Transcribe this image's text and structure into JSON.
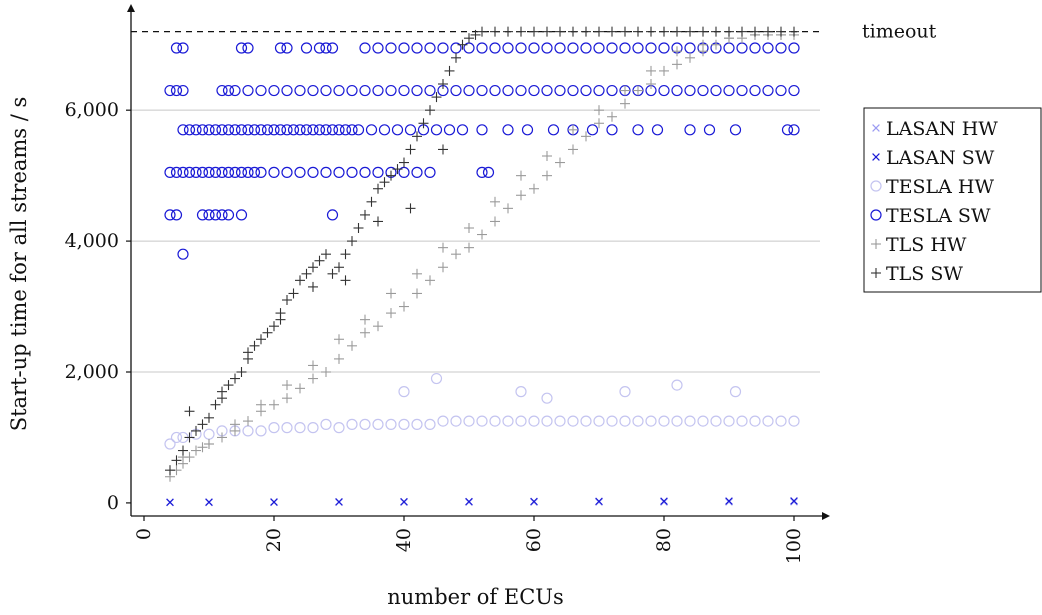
{
  "chart_data": {
    "type": "scatter",
    "xlabel": "number of ECUs",
    "ylabel": "Start-up time for all streams / s",
    "xlim": [
      0,
      100
    ],
    "ylim": [
      -200,
      7500
    ],
    "x_ticks": [
      0,
      20,
      40,
      60,
      80,
      100
    ],
    "y_ticks": [
      0,
      2000,
      4000,
      6000
    ],
    "x_tick_labels": [
      "0",
      "20",
      "40",
      "60",
      "80",
      "100"
    ],
    "y_tick_labels": [
      "0",
      "2,000",
      "4,000",
      "6,000"
    ],
    "grid": "horizontal",
    "legend_position": "right",
    "timeout": {
      "label": "timeout",
      "value": 7200
    },
    "series": [
      {
        "name": "LASAN HW",
        "marker": "x",
        "color": "#9a9af2",
        "x": [
          4,
          10,
          20,
          30,
          40,
          50,
          60,
          70,
          80,
          90,
          100
        ],
        "y": [
          5,
          6,
          8,
          9,
          10,
          11,
          12,
          13,
          14,
          15,
          16
        ]
      },
      {
        "name": "LASAN SW",
        "marker": "x",
        "color": "#1a1ad6",
        "x": [
          4,
          10,
          20,
          30,
          40,
          50,
          60,
          70,
          80,
          90,
          100
        ],
        "y": [
          10,
          12,
          14,
          16,
          18,
          20,
          22,
          24,
          26,
          28,
          30
        ]
      },
      {
        "name": "TESLA HW",
        "marker": "o",
        "color": "#c4c4f0",
        "x": [
          4,
          5,
          6,
          8,
          10,
          12,
          14,
          16,
          18,
          20,
          22,
          24,
          26,
          28,
          30,
          32,
          34,
          36,
          38,
          40,
          42,
          44,
          46,
          48,
          50,
          52,
          54,
          56,
          58,
          60,
          62,
          64,
          66,
          68,
          70,
          72,
          74,
          76,
          78,
          80,
          82,
          84,
          86,
          88,
          90,
          92,
          94,
          96,
          98,
          100,
          40,
          45,
          58,
          62,
          74,
          82,
          91
        ],
        "y": [
          900,
          1000,
          1000,
          1050,
          1050,
          1100,
          1100,
          1100,
          1100,
          1150,
          1150,
          1150,
          1150,
          1200,
          1150,
          1200,
          1200,
          1200,
          1200,
          1200,
          1200,
          1200,
          1250,
          1250,
          1250,
          1250,
          1250,
          1250,
          1250,
          1250,
          1250,
          1250,
          1250,
          1250,
          1250,
          1250,
          1250,
          1250,
          1250,
          1250,
          1250,
          1250,
          1250,
          1250,
          1250,
          1250,
          1250,
          1250,
          1250,
          1250,
          1700,
          1900,
          1700,
          1600,
          1700,
          1800,
          1700
        ]
      },
      {
        "name": "TESLA SW",
        "marker": "o",
        "color": "#1a1ad6",
        "x": [
          5,
          15,
          16,
          21,
          22,
          25,
          27,
          28,
          29,
          6,
          34,
          36,
          38,
          40,
          42,
          44,
          46,
          48,
          50,
          52,
          54,
          56,
          58,
          60,
          62,
          64,
          66,
          68,
          70,
          72,
          74,
          76,
          78,
          80,
          82,
          84,
          86,
          88,
          90,
          92,
          94,
          96,
          98,
          100,
          4,
          5,
          6,
          12,
          13,
          14,
          16,
          18,
          20,
          22,
          24,
          26,
          28,
          30,
          32,
          34,
          36,
          38,
          40,
          42,
          44,
          46,
          48,
          50,
          52,
          54,
          56,
          58,
          60,
          62,
          64,
          66,
          68,
          70,
          72,
          74,
          76,
          78,
          80,
          82,
          84,
          86,
          88,
          90,
          92,
          94,
          96,
          98,
          100,
          6,
          7,
          8,
          9,
          10,
          11,
          12,
          13,
          14,
          15,
          16,
          17,
          18,
          19,
          20,
          21,
          22,
          23,
          24,
          25,
          26,
          27,
          28,
          29,
          30,
          31,
          32,
          33,
          35,
          37,
          39,
          41,
          43,
          45,
          47,
          49,
          52,
          56,
          59,
          63,
          66,
          69,
          72,
          76,
          79,
          84,
          87,
          91,
          99,
          100,
          4,
          5,
          6,
          7,
          8,
          9,
          10,
          11,
          12,
          13,
          14,
          15,
          16,
          17,
          18,
          20,
          22,
          24,
          26,
          28,
          30,
          32,
          34,
          36,
          38,
          40,
          42,
          44,
          52,
          53,
          4,
          5,
          9,
          10,
          11,
          12,
          13,
          15,
          29,
          6
        ],
        "y": [
          6950,
          6950,
          6950,
          6950,
          6950,
          6950,
          6950,
          6950,
          6950,
          6950,
          6950,
          6950,
          6950,
          6950,
          6950,
          6950,
          6950,
          6950,
          6950,
          6950,
          6950,
          6950,
          6950,
          6950,
          6950,
          6950,
          6950,
          6950,
          6950,
          6950,
          6950,
          6950,
          6950,
          6950,
          6950,
          6950,
          6950,
          6950,
          6950,
          6950,
          6950,
          6950,
          6950,
          6950,
          6300,
          6300,
          6300,
          6300,
          6300,
          6300,
          6300,
          6300,
          6300,
          6300,
          6300,
          6300,
          6300,
          6300,
          6300,
          6300,
          6300,
          6300,
          6300,
          6300,
          6300,
          6300,
          6300,
          6300,
          6300,
          6300,
          6300,
          6300,
          6300,
          6300,
          6300,
          6300,
          6300,
          6300,
          6300,
          6300,
          6300,
          6300,
          6300,
          6300,
          6300,
          6300,
          6300,
          6300,
          6300,
          6300,
          6300,
          6300,
          6300,
          5700,
          5700,
          5700,
          5700,
          5700,
          5700,
          5700,
          5700,
          5700,
          5700,
          5700,
          5700,
          5700,
          5700,
          5700,
          5700,
          5700,
          5700,
          5700,
          5700,
          5700,
          5700,
          5700,
          5700,
          5700,
          5700,
          5700,
          5700,
          5700,
          5700,
          5700,
          5700,
          5700,
          5700,
          5700,
          5700,
          5700,
          5700,
          5700,
          5700,
          5700,
          5700,
          5700,
          5700,
          5700,
          5700,
          5700,
          5700,
          5700,
          5700,
          5050,
          5050,
          5050,
          5050,
          5050,
          5050,
          5050,
          5050,
          5050,
          5050,
          5050,
          5050,
          5050,
          5050,
          5050,
          5050,
          5050,
          5050,
          5050,
          5050,
          5050,
          5050,
          5050,
          5050,
          5050,
          5050,
          5050,
          5050,
          5050,
          5050,
          4400,
          4400,
          4400,
          4400,
          4400,
          4400,
          4400,
          4400,
          4400,
          3800
        ]
      },
      {
        "name": "TLS HW",
        "marker": "+",
        "color": "#9a9a9a",
        "x": [
          4,
          5,
          6,
          7,
          8,
          9,
          10,
          12,
          14,
          16,
          18,
          20,
          22,
          24,
          26,
          28,
          30,
          32,
          34,
          36,
          38,
          40,
          42,
          44,
          46,
          48,
          50,
          52,
          54,
          56,
          58,
          60,
          62,
          64,
          66,
          68,
          70,
          72,
          74,
          76,
          78,
          80,
          82,
          84,
          86,
          88,
          90,
          92,
          94,
          96,
          98,
          100,
          6,
          10,
          14,
          18,
          22,
          26,
          30,
          34,
          38,
          42,
          46,
          50,
          54,
          58,
          62,
          66,
          70,
          74,
          78,
          82,
          86,
          90,
          94,
          98
        ],
        "y": [
          400,
          500,
          600,
          700,
          800,
          850,
          900,
          1000,
          1100,
          1250,
          1400,
          1500,
          1600,
          1750,
          1900,
          2000,
          2200,
          2400,
          2600,
          2700,
          2900,
          3000,
          3200,
          3400,
          3600,
          3800,
          3900,
          4100,
          4300,
          4500,
          4700,
          4800,
          5000,
          5200,
          5400,
          5600,
          5800,
          5900,
          6100,
          6300,
          6400,
          6600,
          6700,
          6800,
          6900,
          7000,
          7100,
          7100,
          7150,
          7150,
          7150,
          7150,
          700,
          900,
          1200,
          1500,
          1800,
          2100,
          2500,
          2800,
          3200,
          3500,
          3900,
          4200,
          4600,
          5000,
          5300,
          5700,
          6000,
          6300,
          6600,
          6900,
          7000,
          7100,
          7150,
          7150
        ]
      },
      {
        "name": "TLS SW",
        "marker": "+",
        "color": "#333333",
        "x": [
          4,
          5,
          6,
          7,
          8,
          9,
          10,
          11,
          12,
          13,
          14,
          15,
          16,
          17,
          18,
          19,
          20,
          21,
          22,
          23,
          24,
          25,
          26,
          27,
          28,
          29,
          30,
          31,
          32,
          33,
          34,
          35,
          36,
          37,
          38,
          39,
          40,
          41,
          42,
          43,
          44,
          45,
          46,
          47,
          48,
          49,
          50,
          51,
          52,
          54,
          56,
          58,
          60,
          62,
          64,
          66,
          68,
          70,
          72,
          74,
          76,
          78,
          80,
          82,
          84,
          86,
          88,
          90,
          92,
          94,
          96,
          98,
          100,
          7,
          12,
          16,
          21,
          26,
          31,
          36,
          41,
          46
        ],
        "y": [
          500,
          650,
          800,
          1000,
          1100,
          1200,
          1300,
          1500,
          1700,
          1800,
          1900,
          2000,
          2200,
          2400,
          2500,
          2600,
          2700,
          2900,
          3100,
          3200,
          3400,
          3500,
          3600,
          3700,
          3800,
          3500,
          3600,
          3800,
          4000,
          4200,
          4400,
          4600,
          4800,
          4900,
          5000,
          5100,
          5200,
          5400,
          5600,
          5800,
          6000,
          6200,
          6400,
          6600,
          6800,
          7000,
          7100,
          7150,
          7200,
          7200,
          7200,
          7200,
          7200,
          7200,
          7200,
          7200,
          7200,
          7200,
          7200,
          7200,
          7200,
          7200,
          7200,
          7200,
          7200,
          7200,
          7200,
          7200,
          7200,
          7200,
          7200,
          7200,
          7200,
          1400,
          1600,
          2300,
          2800,
          3300,
          3400,
          4300,
          4500,
          5400
        ]
      }
    ]
  }
}
